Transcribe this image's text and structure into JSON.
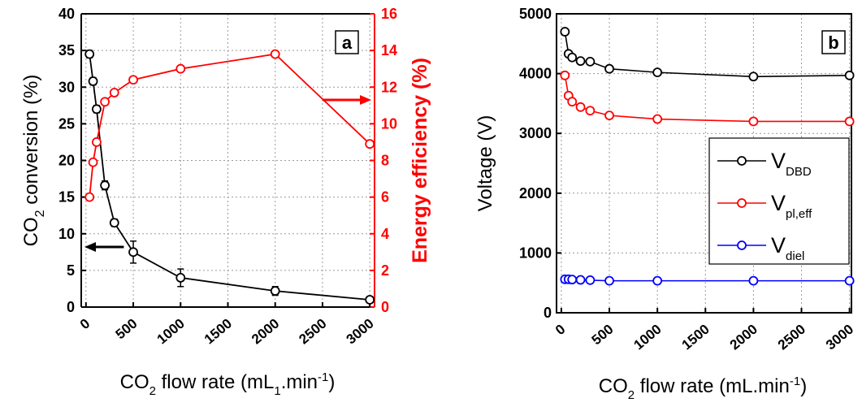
{
  "chart_data": [
    {
      "type": "line",
      "panel_label": "a",
      "x_ticks": [
        0,
        500,
        1000,
        1500,
        2000,
        2500,
        3000
      ],
      "xlim": [
        -50,
        3050
      ],
      "xlabel": {
        "pre": "CO",
        "sub": "2",
        "mid": " flow rate (mL",
        "sub2": "1",
        "post": ".min",
        "sup": "-1",
        "end": ")"
      },
      "left_axis": {
        "label": {
          "pre": "CO",
          "sub": "2",
          "post": " conversion (%)"
        },
        "ylim": [
          0,
          40
        ],
        "ticks": [
          0,
          5,
          10,
          15,
          20,
          25,
          30,
          35,
          40
        ],
        "color": "#000000"
      },
      "right_axis": {
        "label": "Energy efficiency (%)",
        "ylim": [
          0,
          16
        ],
        "ticks": [
          0,
          2,
          4,
          6,
          8,
          10,
          12,
          14,
          16
        ],
        "color": "#ff0000"
      },
      "series": [
        {
          "axis": "left",
          "color": "#000000",
          "x": [
            37.5,
            75,
            112.5,
            200,
            300,
            500,
            1000,
            2000,
            3000
          ],
          "y": [
            34.5,
            30.8,
            27,
            16.6,
            11.5,
            7.5,
            4,
            2.2,
            1
          ],
          "err": [
            0.5,
            0.5,
            0.5,
            0.6,
            0.5,
            1.5,
            1.2,
            0.6,
            0.3
          ]
        },
        {
          "axis": "right",
          "color": "#ff0000",
          "x": [
            37.5,
            75,
            112.5,
            200,
            300,
            500,
            1000,
            2000,
            3000
          ],
          "y": [
            6,
            7.9,
            9,
            11.2,
            11.7,
            12.4,
            13,
            13.8,
            8.9
          ]
        }
      ],
      "arrows": [
        {
          "points_to": "left",
          "x": 400,
          "y": 8.2
        },
        {
          "points_to": "right",
          "x": 2500,
          "y": 11.3
        }
      ]
    },
    {
      "type": "line",
      "panel_label": "b",
      "x_ticks": [
        0,
        500,
        1000,
        1500,
        2000,
        2500,
        3000
      ],
      "xlim": [
        -50,
        3020
      ],
      "xlabel": {
        "pre": "CO",
        "sub": "2",
        "mid": " flow rate (mL.min",
        "sup": "-1",
        "end": ")"
      },
      "ylabel": "Voltage (V)",
      "ylim": [
        0,
        5000
      ],
      "y_ticks": [
        0,
        1000,
        2000,
        3000,
        4000,
        5000
      ],
      "series": [
        {
          "name": "V",
          "name_sub": "DBD",
          "color": "#000000",
          "x": [
            37.5,
            75,
            112.5,
            200,
            300,
            500,
            1000,
            2000,
            3000
          ],
          "y": [
            4700,
            4330,
            4270,
            4210,
            4200,
            4080,
            4020,
            3950,
            3970
          ]
        },
        {
          "name": "V",
          "name_sub": "pl,eff",
          "color": "#ff0000",
          "x": [
            37.5,
            75,
            112.5,
            200,
            300,
            500,
            1000,
            2000,
            3000
          ],
          "y": [
            3970,
            3630,
            3530,
            3440,
            3380,
            3300,
            3240,
            3200,
            3200
          ]
        },
        {
          "name": "V",
          "name_sub": "diel",
          "color": "#0000ff",
          "x": [
            37.5,
            75,
            112.5,
            200,
            300,
            500,
            1000,
            2000,
            3000
          ],
          "y": [
            560,
            560,
            555,
            550,
            545,
            535,
            535,
            535,
            535
          ]
        }
      ],
      "legend_placement": "center-right"
    }
  ]
}
